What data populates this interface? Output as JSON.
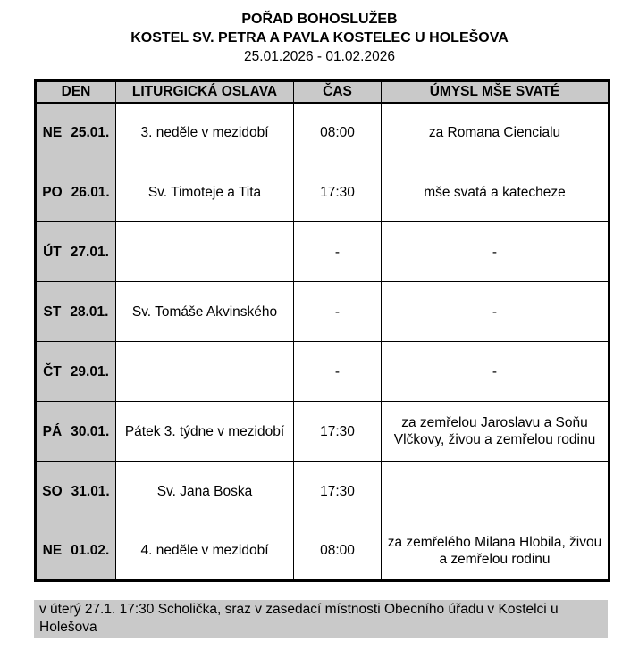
{
  "header": {
    "title": "POŘAD BOHOSLUŽEB",
    "subtitle": "KOSTEL SV. PETRA A PAVLA KOSTELEC U HOLEŠOVA",
    "date_range": "25.01.2026 - 01.02.2026"
  },
  "table": {
    "columns": [
      "DEN",
      "LITURGICKÁ OSLAVA",
      "ČAS",
      "ÚMYSL MŠE SVATÉ"
    ],
    "rows": [
      {
        "day": "NE",
        "date": "25.01.",
        "celebration": "3. neděle v mezidobí",
        "time": "08:00",
        "intention": "za Romana Ciencialu"
      },
      {
        "day": "PO",
        "date": "26.01.",
        "celebration": "Sv. Timoteje a Tita",
        "time": "17:30",
        "intention": "mše svatá a katecheze"
      },
      {
        "day": "ÚT",
        "date": "27.01.",
        "celebration": "",
        "time": "-",
        "intention": "-"
      },
      {
        "day": "ST",
        "date": "28.01.",
        "celebration": "Sv. Tomáše Akvinského",
        "time": "-",
        "intention": "-"
      },
      {
        "day": "ČT",
        "date": "29.01.",
        "celebration": "",
        "time": "-",
        "intention": "-"
      },
      {
        "day": "PÁ",
        "date": "30.01.",
        "celebration": "Pátek 3. týdne v mezidobí",
        "time": "17:30",
        "intention": "za zemřelou Jaroslavu a Soňu Vlčkovy, živou a zemřelou rodinu"
      },
      {
        "day": "SO",
        "date": "31.01.",
        "celebration": "Sv. Jana Boska",
        "time": "17:30",
        "intention": ""
      },
      {
        "day": "NE",
        "date": "01.02.",
        "celebration": "4. neděle v mezidobí",
        "time": "08:00",
        "intention": "za zemřelého Milana Hlobila, živou a zemřelou rodinu"
      }
    ]
  },
  "footer": {
    "note": "v úterý 27.1. 17:30 Scholička, sraz v zasedací místnosti Obecního úřadu v Kostelci u Holešova"
  },
  "colors": {
    "cell_gray": "#c9c9c9",
    "border": "#000000"
  }
}
